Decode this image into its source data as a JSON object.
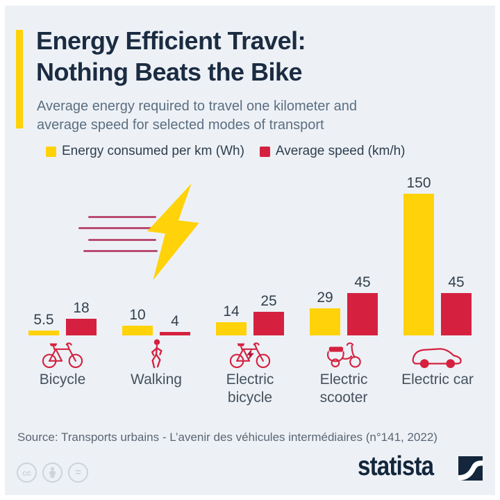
{
  "header": {
    "title_line1": "Energy Efficient Travel:",
    "title_line2": "Nothing Beats the Bike",
    "subtitle": "Average energy required to travel one kilometer and\naverage speed for selected modes of transport"
  },
  "legend": {
    "items": [
      {
        "label": "Energy consumed per km (Wh)",
        "color": "#ffd20a"
      },
      {
        "label": "Average speed (km/h)",
        "color": "#d5213f"
      }
    ]
  },
  "chart_data": {
    "type": "bar",
    "categories": [
      "Bicycle",
      "Walking",
      "Electric bicycle",
      "Electric scooter",
      "Electric car"
    ],
    "category_labels_wrapped": [
      "Bicycle",
      "Walking",
      "Electric\nbicycle",
      "Electric\nscooter",
      "Electric car"
    ],
    "category_icons": [
      "bicycle-icon",
      "walking-icon",
      "electric-bicycle-icon",
      "electric-scooter-icon",
      "electric-car-icon"
    ],
    "series": [
      {
        "name": "Energy consumed per km (Wh)",
        "color": "#ffd20a",
        "values": [
          5.5,
          10,
          14,
          29,
          150
        ]
      },
      {
        "name": "Average speed (km/h)",
        "color": "#d5213f",
        "values": [
          18,
          4,
          25,
          45,
          45
        ]
      }
    ],
    "value_labels_shown": true,
    "axes": "hidden",
    "ylim": [
      0,
      150
    ],
    "grid": false,
    "legend_position": "top"
  },
  "decoration": {
    "lightning_bolt": "lightning-bolt-icon",
    "speed_lines_count": 4
  },
  "footer": {
    "source": "Source: Transports urbains - L’avenir des véhicules intermédiaires (n°141, 2022)",
    "license_icons": [
      "cc-icon",
      "attribution-person-icon",
      "equals-icon"
    ],
    "cc_text": "cc",
    "equals_text": "=",
    "brand": "statista"
  },
  "colors": {
    "background": "#edf1f6",
    "accent-yellow": "#ffd20a",
    "accent-red": "#d5213f",
    "title-navy": "#1b2c42",
    "subtitle-gray": "#5c6e80",
    "label-gray": "#45515e",
    "source-gray": "#5a6573",
    "brand-navy": "#13263b",
    "speed-line-pink": "#c74f74"
  }
}
